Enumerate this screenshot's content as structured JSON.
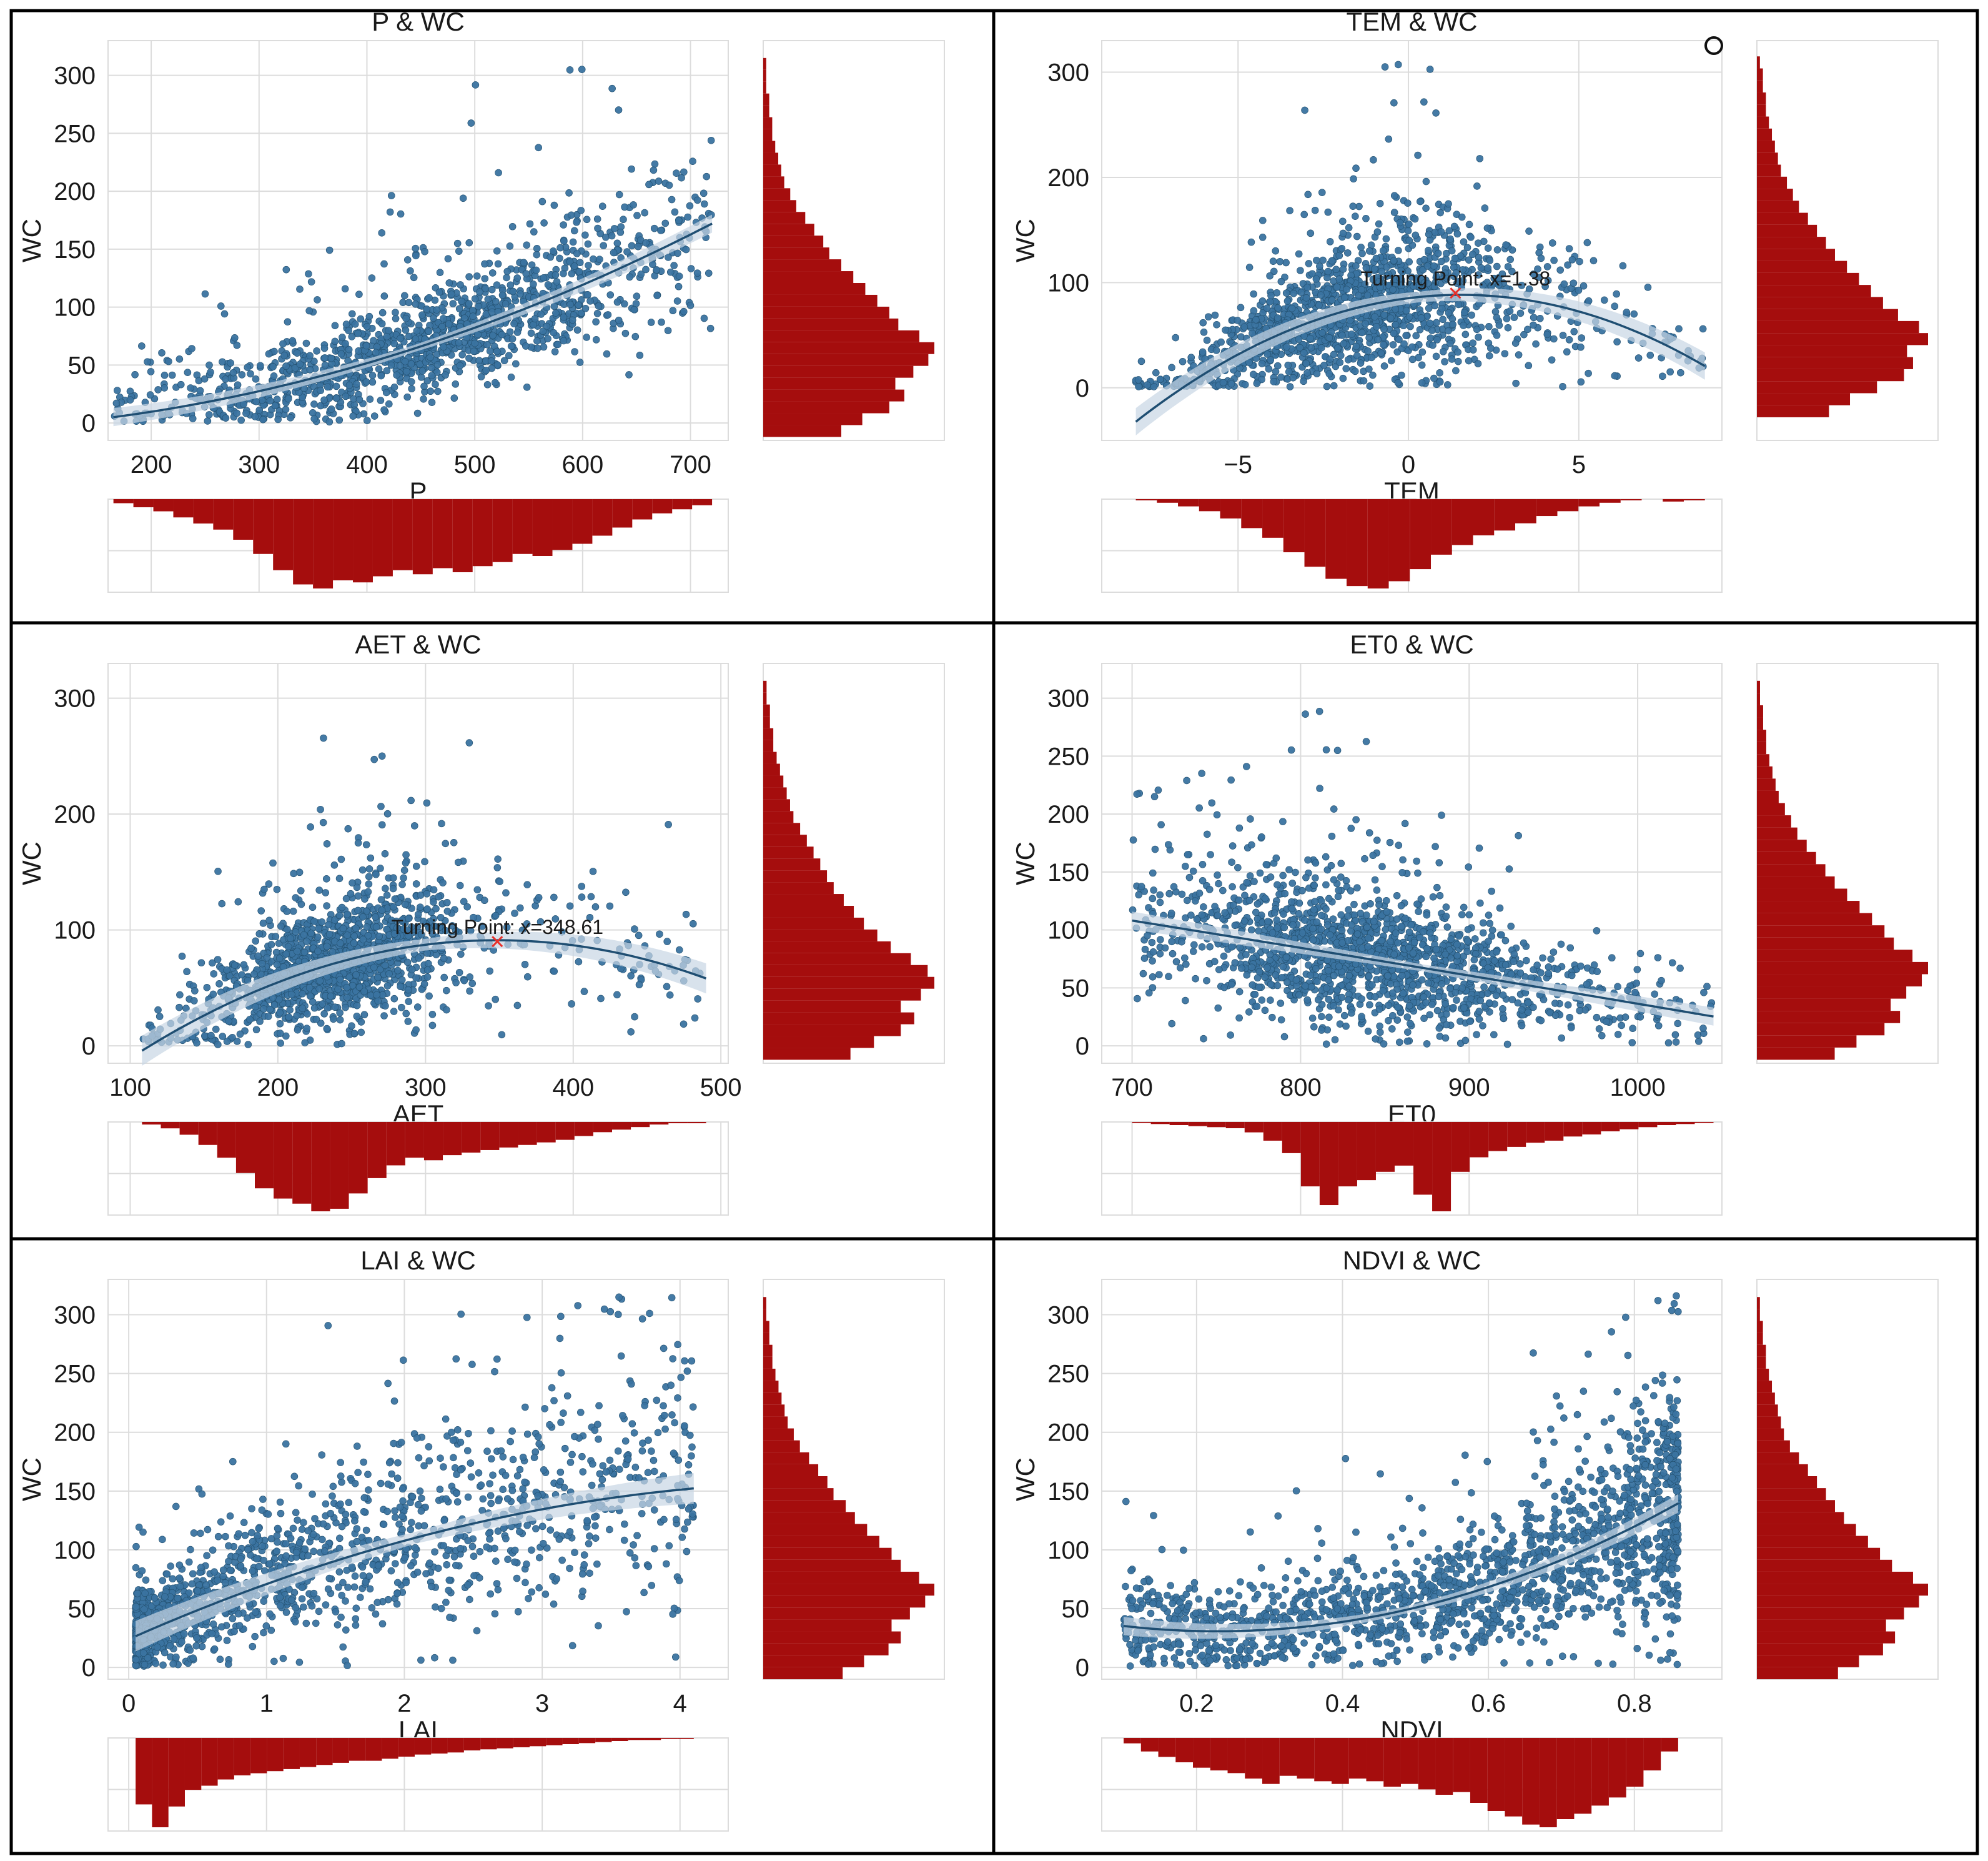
{
  "figure": {
    "layout": "3 rows x 2 columns",
    "y_variable": "WC"
  },
  "colors": {
    "point": "#3a73a0",
    "fit_line": "#1f4e72",
    "band": "#c7d5e4",
    "hist": "#a50d0d",
    "grid": "#dcdcdc",
    "frame": "#000000",
    "marker": "#e8302a"
  },
  "chart_data": [
    {
      "type": "scatter",
      "title": "P & WC",
      "xlabel": "P",
      "ylabel": "WC",
      "xlim": [
        160,
        735
      ],
      "ylim": [
        -15,
        330
      ],
      "xticks": [
        200,
        300,
        400,
        500,
        600,
        700
      ],
      "yticks": [
        0,
        50,
        100,
        150,
        200,
        250,
        300
      ],
      "fit": {
        "kind": "quadratic",
        "x": [
          165,
          300,
          450,
          600,
          720
        ],
        "y": [
          5,
          27,
          68,
          117,
          173
        ],
        "band": 3
      },
      "points_gen": {
        "n": 1400,
        "seed": 11,
        "xmin": 165,
        "xmax": 720,
        "mode": "center",
        "xc": 460,
        "xs": 120,
        "yfrac": 0.26
      },
      "hist_x": [
        2,
        4,
        6,
        9,
        12,
        15,
        20,
        27,
        35,
        42,
        44,
        40,
        41,
        38,
        35,
        37,
        34,
        36,
        33,
        31,
        27,
        28,
        25,
        22,
        18,
        14,
        10,
        7,
        5,
        3
      ],
      "hist_y": [
        26,
        33,
        42,
        47,
        44,
        50,
        55,
        57,
        52,
        45,
        42,
        38,
        34,
        30,
        26,
        22,
        20,
        17,
        14,
        11,
        9,
        7,
        6,
        5,
        4,
        3,
        3,
        2,
        2,
        1,
        1,
        1
      ],
      "turning_point": null
    },
    {
      "type": "scatter",
      "title": "TEM & WC",
      "xlabel": "TEM",
      "ylabel": "WC",
      "xlim": [
        -9,
        9.2
      ],
      "ylim": [
        -50,
        330
      ],
      "xticks": [
        -5,
        0,
        5
      ],
      "yticks": [
        0,
        100,
        200,
        300
      ],
      "fit": {
        "kind": "quadratic",
        "x": [
          -8,
          -4,
          0,
          1.38,
          4,
          8.7
        ],
        "y": [
          -30,
          42,
          88,
          90,
          80,
          20
        ],
        "band": 5
      },
      "points_gen": {
        "n": 1500,
        "seed": 23,
        "xmin": -8,
        "xmax": 8.7,
        "mode": "center",
        "xc": -1.4,
        "xs": 2.4,
        "yfrac": 0.48
      },
      "hist_x": [
        1,
        3,
        6,
        10,
        16,
        24,
        32,
        44,
        56,
        66,
        72,
        74,
        68,
        58,
        46,
        38,
        30,
        26,
        20,
        14,
        10,
        6,
        3,
        1,
        0,
        2,
        1
      ],
      "hist_y": [
        24,
        31,
        40,
        49,
        52,
        50,
        57,
        54,
        47,
        42,
        38,
        34,
        30,
        26,
        23,
        20,
        17,
        14,
        12,
        10,
        8,
        7,
        6,
        5,
        4,
        3,
        3,
        2,
        2,
        1
      ],
      "legend_marker": "circle",
      "turning_point": {
        "x": 1.38,
        "y": 90,
        "label": "Turning Point: x=1.38"
      }
    },
    {
      "type": "scatter",
      "title": "AET & WC",
      "xlabel": "AET",
      "ylabel": "WC",
      "xlim": [
        85,
        505
      ],
      "ylim": [
        -15,
        330
      ],
      "xticks": [
        100,
        200,
        300,
        400,
        500
      ],
      "yticks": [
        0,
        100,
        200,
        300
      ],
      "fit": {
        "kind": "quadratic",
        "x": [
          108,
          200,
          300,
          348.61,
          420,
          490
        ],
        "y": [
          -5,
          57,
          86,
          90,
          84,
          58
        ],
        "band": 5
      },
      "points_gen": {
        "n": 1500,
        "seed": 37,
        "xmin": 108,
        "xmax": 490,
        "mode": "center",
        "xc": 240,
        "xs": 40,
        "yfrac": 0.36
      },
      "hist_x": [
        2,
        5,
        10,
        18,
        28,
        40,
        52,
        60,
        64,
        70,
        68,
        56,
        44,
        34,
        28,
        30,
        26,
        24,
        22,
        20,
        18,
        16,
        14,
        11,
        8,
        6,
        4,
        2,
        1,
        1
      ],
      "hist_y": [
        26,
        33,
        41,
        45,
        41,
        47,
        51,
        49,
        44,
        38,
        34,
        30,
        27,
        24,
        21,
        19,
        17,
        15,
        13,
        11,
        9,
        8,
        7,
        6,
        5,
        4,
        3,
        3,
        2,
        2,
        1,
        1
      ],
      "turning_point": {
        "x": 348.61,
        "y": 90,
        "label": "Turning Point: x=348.61"
      }
    },
    {
      "type": "scatter",
      "title": "ET0 & WC",
      "xlabel": "ET0",
      "ylabel": "WC",
      "xlim": [
        682,
        1050
      ],
      "ylim": [
        -15,
        330
      ],
      "xticks": [
        700,
        800,
        900,
        1000
      ],
      "yticks": [
        0,
        50,
        100,
        150,
        200,
        250,
        300
      ],
      "fit": {
        "kind": "quadratic",
        "x": [
          700,
          800,
          900,
          1000,
          1045
        ],
        "y": [
          108,
          85,
          60,
          37,
          25
        ],
        "band": 3
      },
      "points_gen": {
        "n": 1600,
        "seed": 53,
        "xmin": 700,
        "xmax": 1045,
        "mode": "center",
        "xc": 840,
        "xs": 60,
        "yfrac": 0.4
      },
      "hist_x": [
        1,
        2,
        3,
        4,
        5,
        6,
        10,
        18,
        30,
        62,
        80,
        62,
        56,
        48,
        42,
        70,
        86,
        48,
        34,
        28,
        24,
        20,
        18,
        14,
        12,
        9,
        7,
        5,
        3,
        2,
        1
      ],
      "hist_y": [
        25,
        32,
        41,
        46,
        43,
        48,
        53,
        55,
        50,
        44,
        41,
        37,
        33,
        29,
        25,
        22,
        19,
        16,
        13,
        11,
        9,
        7,
        6,
        5,
        4,
        3,
        3,
        2,
        2,
        1,
        1
      ],
      "turning_point": null
    },
    {
      "type": "scatter",
      "title": "LAI & WC",
      "xlabel": "LAI",
      "ylabel": "WC",
      "xlim": [
        -0.15,
        4.35
      ],
      "ylim": [
        -10,
        330
      ],
      "xticks": [
        0,
        1,
        2,
        3,
        4
      ],
      "yticks": [
        0,
        50,
        100,
        150,
        200,
        250,
        300
      ],
      "fit": {
        "kind": "quadratic",
        "x": [
          0.05,
          1,
          2,
          3,
          4.1
        ],
        "y": [
          27,
          70,
          108,
          135,
          152
        ],
        "band": 5
      },
      "points_gen": {
        "n": 1500,
        "seed": 71,
        "xmin": 0.05,
        "xmax": 4.1,
        "mode": "skew",
        "xc": 0.6,
        "xs": 1.0,
        "yfrac": 0.42
      },
      "hist_x": [
        64,
        86,
        66,
        50,
        46,
        40,
        36,
        34,
        32,
        30,
        28,
        26,
        24,
        22,
        22,
        20,
        18,
        16,
        15,
        14,
        12,
        11,
        10,
        9,
        8,
        7,
        6,
        5,
        4,
        3,
        2,
        2,
        1,
        1
      ],
      "hist_y": [
        26,
        33,
        41,
        45,
        42,
        48,
        53,
        56,
        51,
        45,
        42,
        38,
        34,
        30,
        27,
        23,
        21,
        18,
        15,
        12,
        10,
        8,
        7,
        6,
        5,
        4,
        3,
        3,
        2,
        2,
        1,
        1
      ],
      "turning_point": null
    },
    {
      "type": "scatter",
      "title": "NDVI & WC",
      "xlabel": "NDVI",
      "ylabel": "WC",
      "xlim": [
        0.07,
        0.92
      ],
      "ylim": [
        -10,
        330
      ],
      "xticks": [
        0.2,
        0.4,
        0.6,
        0.8
      ],
      "yticks": [
        0,
        50,
        100,
        150,
        200,
        250,
        300
      ],
      "fit": {
        "kind": "quadratic",
        "x": [
          0.1,
          0.25,
          0.45,
          0.65,
          0.86
        ],
        "y": [
          35,
          31,
          45,
          78,
          140
        ],
        "band": 3
      },
      "points_gen": {
        "n": 1700,
        "seed": 89,
        "xmin": 0.1,
        "xmax": 0.86,
        "mode": "skewhigh",
        "xc": 0.7,
        "xs": 0.18,
        "yfrac": 0.42
      },
      "hist_x": [
        4,
        10,
        14,
        18,
        22,
        24,
        26,
        30,
        34,
        28,
        30,
        32,
        34,
        30,
        32,
        36,
        34,
        38,
        42,
        40,
        48,
        54,
        58,
        64,
        66,
        60,
        56,
        50,
        44,
        36,
        24,
        10
      ],
      "hist_y": [
        27,
        34,
        42,
        46,
        43,
        49,
        54,
        57,
        52,
        45,
        41,
        37,
        33,
        29,
        26,
        23,
        20,
        17,
        14,
        11,
        9,
        8,
        7,
        6,
        5,
        4,
        3,
        3,
        2,
        2,
        1,
        1
      ],
      "turning_point": null
    }
  ]
}
